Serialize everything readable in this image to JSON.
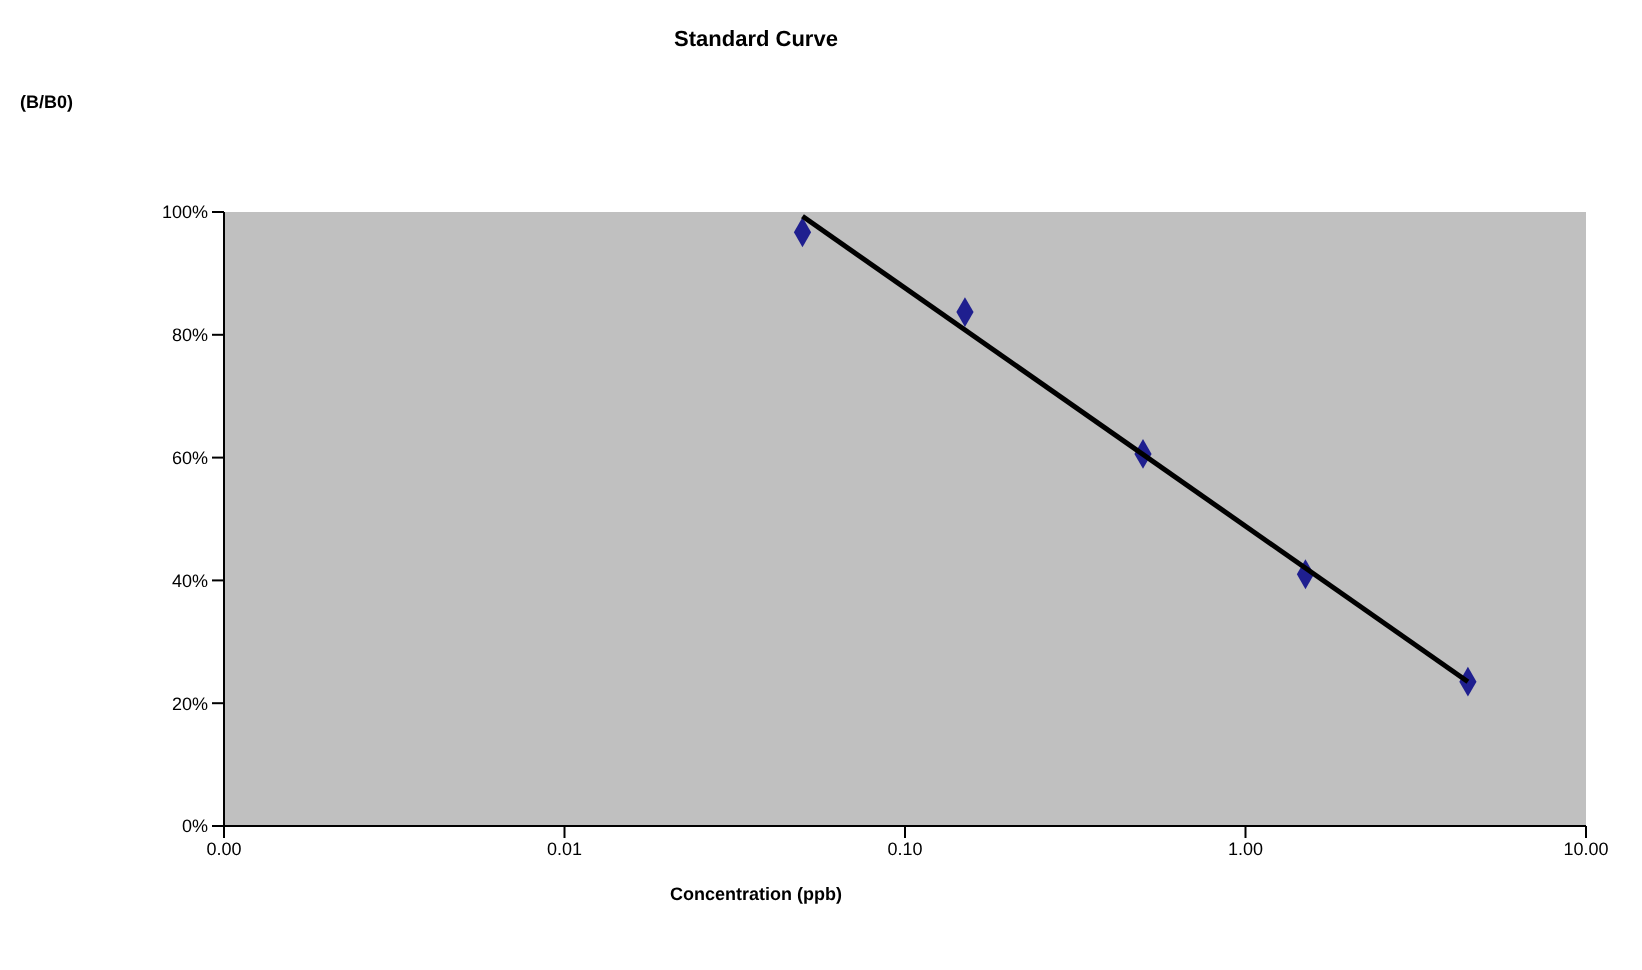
{
  "chart_data": {
    "type": "scatter",
    "title": "Standard Curve",
    "xlabel": "Concentration (ppb)",
    "annotations": [
      "(B/B0)"
    ],
    "log": "x",
    "grid": false,
    "marker": "diamond",
    "xlim": [
      0.001,
      10
    ],
    "xticks": [
      {
        "value": 0.001,
        "label": "0.00"
      },
      {
        "value": 0.01,
        "label": "0.01"
      },
      {
        "value": 0.1,
        "label": "0.10"
      },
      {
        "value": 1,
        "label": "1.00"
      },
      {
        "value": 10,
        "label": "10.00"
      }
    ],
    "ylim": [
      0,
      100
    ],
    "yticks": [
      {
        "value": 0,
        "label": "0%"
      },
      {
        "value": 20,
        "label": "20%"
      },
      {
        "value": 40,
        "label": "40%"
      },
      {
        "value": 60,
        "label": "60%"
      },
      {
        "value": 80,
        "label": "80%"
      },
      {
        "value": 100,
        "label": "100%"
      }
    ],
    "series": [
      {
        "color": "#1f1f8f",
        "x": [
          0.05,
          0.15,
          0.5,
          1.5,
          4.5
        ],
        "values": [
          96.7,
          83.7,
          60.6,
          41,
          23.5
        ]
      },
      {
        "type": "line",
        "color": "#000000",
        "marker": "none",
        "line_style": "solid",
        "x": [
          0.05,
          4.5
        ],
        "values": [
          99.3,
          23.5
        ]
      }
    ]
  }
}
